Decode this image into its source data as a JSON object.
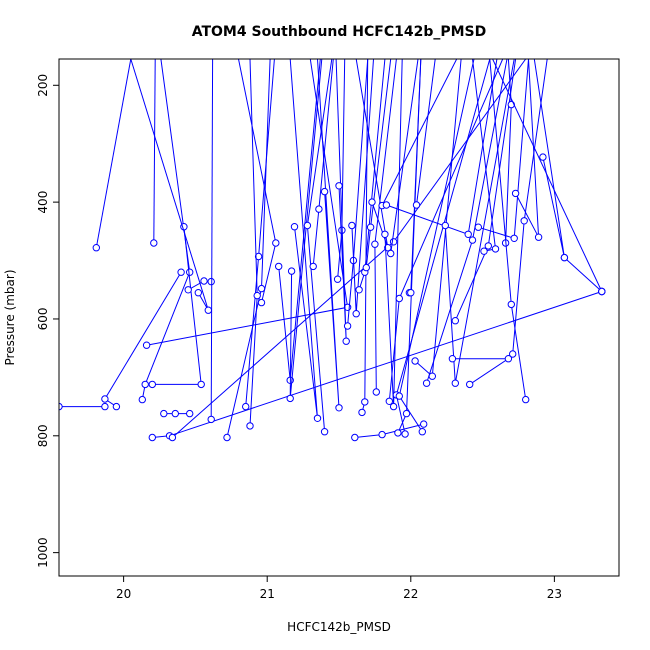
{
  "chart_data": {
    "type": "line",
    "title": "ATOM4 Southbound HCFC142b_PMSD",
    "xlabel": "HCFC142b_PMSD",
    "ylabel": "Pressure (mbar)",
    "xlim": [
      19.55,
      23.45
    ],
    "ylim": [
      1040,
      155
    ],
    "y_reversed": true,
    "x_ticks": [
      20,
      21,
      22,
      23
    ],
    "x_tick_labels": [
      "20",
      "21",
      "22",
      "23"
    ],
    "y_ticks": [
      200,
      400,
      600,
      800,
      1000
    ],
    "y_tick_labels": [
      "200",
      "400",
      "600",
      "800",
      "1000"
    ],
    "grid": false,
    "legend": "none",
    "colors": {
      "series": "#0000ff",
      "axis": "#000000",
      "background": "#ffffff"
    },
    "series": [
      {
        "points": [
          [
            19.81,
            478
          ],
          [
            20.05,
            155
          ]
        ]
      },
      {
        "points": [
          [
            19.55,
            750
          ],
          [
            19.87,
            750
          ]
        ]
      },
      {
        "points": [
          [
            19.95,
            750
          ],
          [
            19.87,
            737
          ],
          [
            20.4,
            520
          ]
        ]
      },
      {
        "points": [
          [
            20.13,
            738
          ],
          [
            20.15,
            712
          ],
          [
            20.46,
            520
          ],
          [
            20.26,
            155
          ]
        ]
      },
      {
        "points": [
          [
            20.21,
            470
          ],
          [
            20.22,
            155
          ]
        ]
      },
      {
        "points": [
          [
            20.16,
            645
          ],
          [
            21.56,
            580
          ],
          [
            21.3,
            155
          ]
        ]
      },
      {
        "points": [
          [
            20.2,
            803
          ],
          [
            20.32,
            800
          ],
          [
            23.33,
            553
          ]
        ]
      },
      {
        "points": [
          [
            20.34,
            803
          ],
          [
            21.88,
            468
          ],
          [
            22.8,
            155
          ]
        ]
      },
      {
        "points": [
          [
            20.28,
            762
          ],
          [
            20.36,
            762
          ],
          [
            20.46,
            762
          ]
        ]
      },
      {
        "points": [
          [
            20.42,
            442
          ],
          [
            20.54,
            712
          ],
          [
            20.2,
            712
          ]
        ]
      },
      {
        "points": [
          [
            20.45,
            550
          ],
          [
            20.56,
            535
          ],
          [
            20.61,
            536
          ]
        ]
      },
      {
        "points": [
          [
            20.52,
            555
          ],
          [
            20.59,
            585
          ],
          [
            20.05,
            155
          ]
        ]
      },
      {
        "points": [
          [
            20.61,
            772
          ],
          [
            20.62,
            155
          ]
        ]
      },
      {
        "points": [
          [
            20.72,
            803
          ],
          [
            20.96,
            548
          ],
          [
            21.02,
            155
          ]
        ]
      },
      {
        "points": [
          [
            20.85,
            750
          ],
          [
            20.94,
            493
          ],
          [
            21.05,
            155
          ]
        ]
      },
      {
        "points": [
          [
            20.88,
            783
          ],
          [
            20.93,
            560
          ],
          [
            20.88,
            155
          ]
        ]
      },
      {
        "points": [
          [
            20.96,
            572
          ],
          [
            21.06,
            470
          ],
          [
            20.8,
            155
          ]
        ]
      },
      {
        "points": [
          [
            21.08,
            510
          ],
          [
            21.16,
            705
          ],
          [
            21.37,
            155
          ]
        ]
      },
      {
        "points": [
          [
            21.17,
            518
          ],
          [
            21.16,
            736
          ],
          [
            21.38,
            155
          ]
        ]
      },
      {
        "points": [
          [
            21.19,
            442
          ],
          [
            21.35,
            770
          ],
          [
            21.16,
            155
          ]
        ]
      },
      {
        "points": [
          [
            21.4,
            793
          ],
          [
            21.28,
            440
          ],
          [
            21.45,
            155
          ]
        ]
      },
      {
        "points": [
          [
            21.32,
            510
          ],
          [
            21.36,
            412
          ],
          [
            21.46,
            155
          ]
        ]
      },
      {
        "points": [
          [
            21.4,
            382
          ],
          [
            21.5,
            752
          ],
          [
            21.35,
            155
          ]
        ]
      },
      {
        "points": [
          [
            21.49,
            532
          ],
          [
            21.52,
            448
          ],
          [
            21.54,
            155
          ]
        ]
      },
      {
        "points": [
          [
            21.5,
            372
          ],
          [
            21.55,
            638
          ],
          [
            21.48,
            155
          ]
        ]
      },
      {
        "points": [
          [
            21.56,
            612
          ],
          [
            21.6,
            500
          ],
          [
            21.7,
            155
          ]
        ]
      },
      {
        "points": [
          [
            21.61,
            803
          ],
          [
            21.8,
            798
          ],
          [
            22.09,
            780
          ]
        ]
      },
      {
        "points": [
          [
            21.59,
            440
          ],
          [
            21.62,
            591
          ],
          [
            21.74,
            155
          ]
        ]
      },
      {
        "points": [
          [
            21.66,
            760
          ],
          [
            21.68,
            742
          ],
          [
            21.7,
            155
          ]
        ]
      },
      {
        "points": [
          [
            21.64,
            550
          ],
          [
            21.68,
            520
          ],
          [
            21.82,
            155
          ]
        ]
      },
      {
        "points": [
          [
            21.69,
            512
          ],
          [
            21.72,
            443
          ],
          [
            21.86,
            155
          ]
        ]
      },
      {
        "points": [
          [
            21.73,
            400
          ],
          [
            21.84,
            478
          ],
          [
            21.62,
            155
          ]
        ]
      },
      {
        "points": [
          [
            21.76,
            725
          ],
          [
            21.75,
            472
          ],
          [
            21.9,
            155
          ]
        ]
      },
      {
        "points": [
          [
            21.8,
            406
          ],
          [
            22.32,
            155
          ]
        ]
      },
      {
        "points": [
          [
            21.83,
            405
          ],
          [
            22.4,
            455
          ],
          [
            22.6,
            155
          ]
        ]
      },
      {
        "points": [
          [
            21.82,
            455
          ],
          [
            21.88,
            750
          ],
          [
            21.94,
            155
          ]
        ]
      },
      {
        "points": [
          [
            21.86,
            488
          ],
          [
            22.05,
            155
          ]
        ]
      },
      {
        "points": [
          [
            21.85,
            741
          ],
          [
            21.92,
            565
          ],
          [
            22.64,
            155
          ]
        ]
      },
      {
        "points": [
          [
            21.91,
            795
          ],
          [
            21.97,
            762
          ],
          [
            22.07,
            155
          ]
        ]
      },
      {
        "points": [
          [
            21.96,
            797
          ],
          [
            21.9,
            730
          ],
          [
            22.55,
            155
          ]
        ]
      },
      {
        "points": [
          [
            21.99,
            555
          ],
          [
            22.0,
            555
          ],
          [
            22.07,
            155
          ]
        ]
      },
      {
        "points": [
          [
            22.04,
            405
          ],
          [
            22.17,
            155
          ]
        ]
      },
      {
        "points": [
          [
            22.08,
            793
          ],
          [
            21.92,
            732
          ],
          [
            22.44,
            155
          ]
        ]
      },
      {
        "points": [
          [
            22.03,
            672
          ],
          [
            22.15,
            698
          ],
          [
            22.35,
            155
          ]
        ]
      },
      {
        "points": [
          [
            22.11,
            710
          ],
          [
            22.43,
            465
          ],
          [
            22.67,
            155
          ]
        ]
      },
      {
        "points": [
          [
            22.24,
            440
          ],
          [
            22.31,
            710
          ],
          [
            22.72,
            155
          ]
        ]
      },
      {
        "points": [
          [
            22.31,
            603
          ],
          [
            22.54,
            475
          ],
          [
            22.73,
            155
          ]
        ]
      },
      {
        "points": [
          [
            22.29,
            668
          ],
          [
            22.68,
            668
          ],
          [
            22.41,
            712
          ]
        ]
      },
      {
        "points": [
          [
            22.47,
            443
          ],
          [
            22.72,
            462
          ],
          [
            22.82,
            155
          ]
        ]
      },
      {
        "points": [
          [
            22.51,
            484
          ],
          [
            22.59,
            480
          ],
          [
            22.43,
            155
          ]
        ]
      },
      {
        "points": [
          [
            22.66,
            470
          ],
          [
            22.7,
            233
          ],
          [
            22.68,
            155
          ]
        ]
      },
      {
        "points": [
          [
            22.71,
            660
          ],
          [
            22.79,
            432
          ],
          [
            22.95,
            155
          ]
        ]
      },
      {
        "points": [
          [
            22.73,
            385
          ],
          [
            22.89,
            460
          ],
          [
            22.82,
            155
          ]
        ]
      },
      {
        "points": [
          [
            22.8,
            738
          ],
          [
            22.7,
            575
          ],
          [
            22.55,
            155
          ]
        ]
      },
      {
        "points": [
          [
            22.92,
            323
          ],
          [
            23.07,
            495
          ],
          [
            22.86,
            155
          ]
        ]
      },
      {
        "points": [
          [
            22.57,
            155
          ],
          [
            23.33,
            553
          ]
        ]
      },
      {
        "points": [
          [
            23.07,
            495
          ],
          [
            23.33,
            553
          ]
        ]
      }
    ]
  }
}
